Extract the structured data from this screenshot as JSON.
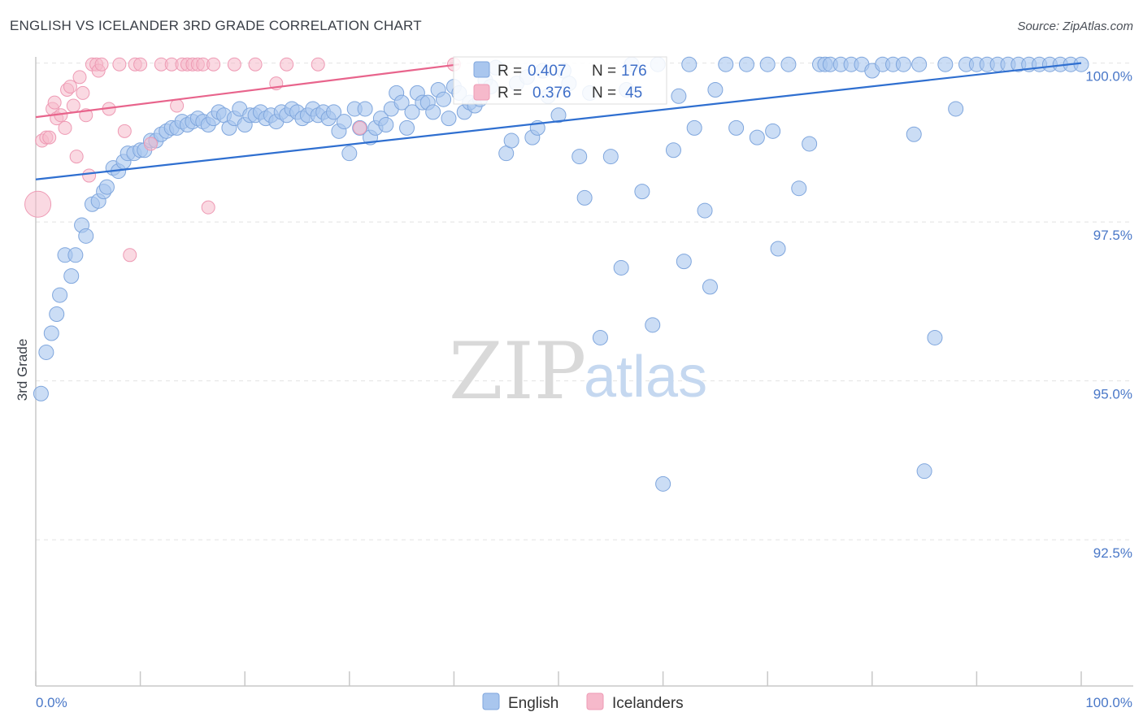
{
  "title": "ENGLISH VS ICELANDER 3RD GRADE CORRELATION CHART",
  "source": "Source: ZipAtlas.com",
  "watermark": {
    "zip": "ZIP",
    "atlas": "atlas"
  },
  "colors": {
    "english_fill": "#a9c6ee",
    "english_stroke": "#7fa6dd",
    "english_line": "#2f6fd0",
    "iceland_fill": "#f6b9cb",
    "iceland_stroke": "#ee9ab4",
    "iceland_line": "#e8648c",
    "grid": "#e2e2e2",
    "axis": "#c8c8c8"
  },
  "legend": {
    "english": {
      "r_label": "R =",
      "r_value": "0.407",
      "n_label": "N =",
      "n_value": "176"
    },
    "iceland": {
      "r_label": "R =",
      "r_value": "0.376",
      "n_label": "N =",
      "n_value": "45"
    }
  },
  "bottom_legend": [
    "English",
    "Icelanders"
  ],
  "chart_data": {
    "type": "scatter",
    "title": "ENGLISH VS ICELANDER 3RD GRADE CORRELATION CHART",
    "xlabel": "",
    "ylabel": "3rd Grade",
    "xlim": [
      0,
      100
    ],
    "ylim": [
      90.2,
      100.2
    ],
    "x_tick_labels": [
      "0.0%",
      "100.0%"
    ],
    "y_ticks": [
      92.5,
      95.0,
      97.5,
      100.0
    ],
    "y_tick_labels": [
      "92.5%",
      "95.0%",
      "97.5%",
      "100.0%"
    ],
    "series": [
      {
        "name": "English",
        "R": 0.407,
        "N": 176,
        "trend": {
          "x": [
            0,
            100
          ],
          "y": [
            98.17,
            100.0
          ]
        },
        "points": [
          [
            0.5,
            94.8
          ],
          [
            1,
            95.45
          ],
          [
            1.5,
            95.75
          ],
          [
            2,
            96.05
          ],
          [
            2.3,
            96.35
          ],
          [
            2.8,
            96.98
          ],
          [
            3.4,
            96.65
          ],
          [
            3.8,
            96.98
          ],
          [
            4.4,
            97.45
          ],
          [
            4.8,
            97.28
          ],
          [
            5.4,
            97.78
          ],
          [
            6,
            97.83
          ],
          [
            6.5,
            97.98
          ],
          [
            6.8,
            98.05
          ],
          [
            7.4,
            98.35
          ],
          [
            7.9,
            98.3
          ],
          [
            8.4,
            98.45
          ],
          [
            8.8,
            98.58
          ],
          [
            9.4,
            98.58
          ],
          [
            10,
            98.63
          ],
          [
            10.4,
            98.63
          ],
          [
            11,
            98.78
          ],
          [
            11.5,
            98.78
          ],
          [
            12,
            98.88
          ],
          [
            12.5,
            98.93
          ],
          [
            13,
            98.98
          ],
          [
            13.5,
            98.98
          ],
          [
            14,
            99.08
          ],
          [
            14.5,
            99.03
          ],
          [
            15,
            99.08
          ],
          [
            15.5,
            99.13
          ],
          [
            16,
            99.08
          ],
          [
            16.5,
            99.03
          ],
          [
            17,
            99.13
          ],
          [
            17.5,
            99.23
          ],
          [
            18,
            99.18
          ],
          [
            18.5,
            98.98
          ],
          [
            19,
            99.13
          ],
          [
            19.5,
            99.28
          ],
          [
            20,
            99.03
          ],
          [
            20.5,
            99.18
          ],
          [
            21,
            99.18
          ],
          [
            21.5,
            99.23
          ],
          [
            22,
            99.13
          ],
          [
            22.5,
            99.18
          ],
          [
            23,
            99.08
          ],
          [
            23.5,
            99.23
          ],
          [
            24,
            99.18
          ],
          [
            24.5,
            99.28
          ],
          [
            25,
            99.23
          ],
          [
            25.5,
            99.13
          ],
          [
            26,
            99.18
          ],
          [
            26.5,
            99.28
          ],
          [
            27,
            99.18
          ],
          [
            27.5,
            99.23
          ],
          [
            28,
            99.13
          ],
          [
            28.5,
            99.23
          ],
          [
            29,
            98.93
          ],
          [
            29.5,
            99.08
          ],
          [
            30,
            98.58
          ],
          [
            30.5,
            99.28
          ],
          [
            31,
            98.98
          ],
          [
            31.5,
            99.28
          ],
          [
            32,
            98.83
          ],
          [
            32.5,
            98.98
          ],
          [
            33,
            99.13
          ],
          [
            33.5,
            99.03
          ],
          [
            34,
            99.28
          ],
          [
            34.5,
            99.53
          ],
          [
            35,
            99.38
          ],
          [
            35.5,
            98.98
          ],
          [
            36,
            99.23
          ],
          [
            36.5,
            99.53
          ],
          [
            37,
            99.38
          ],
          [
            37.5,
            99.38
          ],
          [
            38,
            99.23
          ],
          [
            38.5,
            99.58
          ],
          [
            39,
            99.43
          ],
          [
            39.5,
            99.13
          ],
          [
            40,
            99.63
          ],
          [
            40.5,
            99.53
          ],
          [
            41,
            99.23
          ],
          [
            41.5,
            99.38
          ],
          [
            42,
            99.33
          ],
          [
            42.5,
            99.43
          ],
          [
            43,
            99.73
          ],
          [
            43.5,
            99.63
          ],
          [
            44,
            99.93
          ],
          [
            45,
            98.58
          ],
          [
            45.5,
            98.78
          ],
          [
            46,
            99.68
          ],
          [
            47,
            99.78
          ],
          [
            47.5,
            98.83
          ],
          [
            48,
            98.98
          ],
          [
            48.5,
            99.88
          ],
          [
            49,
            99.48
          ],
          [
            50,
            99.18
          ],
          [
            50.5,
            99.88
          ],
          [
            51,
            99.68
          ],
          [
            52,
            98.53
          ],
          [
            52.5,
            97.88
          ],
          [
            53,
            99.53
          ],
          [
            54,
            95.68
          ],
          [
            55,
            98.53
          ],
          [
            56,
            96.78
          ],
          [
            56.5,
            99.58
          ],
          [
            57,
            99.98
          ],
          [
            58,
            97.98
          ],
          [
            59,
            95.88
          ],
          [
            59.5,
            99.98
          ],
          [
            60,
            93.38
          ],
          [
            61,
            98.63
          ],
          [
            61.5,
            99.48
          ],
          [
            62,
            96.88
          ],
          [
            62.5,
            99.98
          ],
          [
            63,
            98.98
          ],
          [
            64,
            97.68
          ],
          [
            64.5,
            96.48
          ],
          [
            65,
            99.58
          ],
          [
            66,
            99.98
          ],
          [
            67,
            98.98
          ],
          [
            68,
            99.98
          ],
          [
            69,
            98.83
          ],
          [
            70,
            99.98
          ],
          [
            70.5,
            98.93
          ],
          [
            71,
            97.08
          ],
          [
            72,
            99.98
          ],
          [
            73,
            98.03
          ],
          [
            74,
            98.73
          ],
          [
            75,
            99.98
          ],
          [
            75.5,
            99.98
          ],
          [
            76,
            99.98
          ],
          [
            77,
            99.98
          ],
          [
            78,
            99.98
          ],
          [
            79,
            99.98
          ],
          [
            80,
            99.88
          ],
          [
            81,
            99.98
          ],
          [
            82,
            99.98
          ],
          [
            83,
            99.98
          ],
          [
            84,
            98.88
          ],
          [
            84.5,
            99.98
          ],
          [
            85,
            93.58
          ],
          [
            86,
            95.68
          ],
          [
            87,
            99.98
          ],
          [
            88,
            99.28
          ],
          [
            89,
            99.98
          ],
          [
            90,
            99.98
          ],
          [
            91,
            99.98
          ],
          [
            92,
            99.98
          ],
          [
            93,
            99.98
          ],
          [
            94,
            99.98
          ],
          [
            95,
            99.98
          ],
          [
            96,
            99.98
          ],
          [
            97,
            99.98
          ],
          [
            98,
            99.98
          ],
          [
            99,
            99.98
          ],
          [
            100,
            99.98
          ]
        ]
      },
      {
        "name": "Icelanders",
        "R": 0.376,
        "N": 45,
        "trend": {
          "x": [
            0,
            40.5
          ],
          "y": [
            99.15,
            99.98
          ]
        },
        "points": [
          [
            0.2,
            97.78
          ],
          [
            0.6,
            98.78
          ],
          [
            1,
            98.83
          ],
          [
            1.3,
            98.83
          ],
          [
            1.6,
            99.28
          ],
          [
            1.8,
            99.38
          ],
          [
            2,
            99.13
          ],
          [
            2.4,
            99.18
          ],
          [
            2.8,
            98.98
          ],
          [
            3,
            99.58
          ],
          [
            3.3,
            99.63
          ],
          [
            3.6,
            99.33
          ],
          [
            3.9,
            98.53
          ],
          [
            4.2,
            99.78
          ],
          [
            4.5,
            99.53
          ],
          [
            4.8,
            99.18
          ],
          [
            5.1,
            98.23
          ],
          [
            5.4,
            99.98
          ],
          [
            5.8,
            99.98
          ],
          [
            6,
            99.88
          ],
          [
            6.3,
            99.98
          ],
          [
            7,
            99.28
          ],
          [
            8,
            99.98
          ],
          [
            8.5,
            98.93
          ],
          [
            9,
            96.98
          ],
          [
            9.5,
            99.98
          ],
          [
            10,
            99.98
          ],
          [
            11,
            98.73
          ],
          [
            12,
            99.98
          ],
          [
            13,
            99.98
          ],
          [
            13.5,
            99.33
          ],
          [
            14,
            99.98
          ],
          [
            14.5,
            99.98
          ],
          [
            15,
            99.98
          ],
          [
            15.5,
            99.98
          ],
          [
            16,
            99.98
          ],
          [
            16.5,
            97.73
          ],
          [
            17,
            99.98
          ],
          [
            19,
            99.98
          ],
          [
            21,
            99.98
          ],
          [
            23,
            99.68
          ],
          [
            24,
            99.98
          ],
          [
            27,
            99.98
          ],
          [
            31,
            98.98
          ],
          [
            40,
            99.98
          ]
        ]
      }
    ]
  }
}
